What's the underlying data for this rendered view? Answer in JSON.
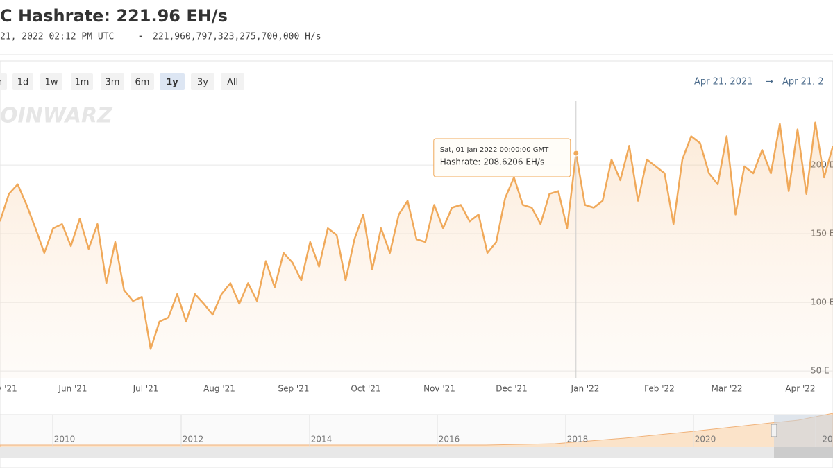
{
  "header": {
    "title": "C Hashrate: 221.96 EH/s",
    "timestamp": "21, 2022 02:12 PM UTC",
    "separator": "-",
    "raw_value": "221,960,797,323,275,700,000 H/s"
  },
  "range_buttons": [
    "n",
    "1d",
    "1w",
    "1m",
    "3m",
    "6m",
    "1y",
    "3y",
    "All"
  ],
  "selected_range": "1y",
  "date_range": {
    "from": "Apr 21, 2021",
    "arrow": "→",
    "to": "Apr 21, 2"
  },
  "watermark": "OINWARZ",
  "chart_data": {
    "type": "area",
    "xticks": [
      "y '21",
      "Jun '21",
      "Jul '21",
      "Aug '21",
      "Sep '21",
      "Oct '21",
      "Nov '21",
      "Dec '21",
      "Jan '22",
      "Feb '22",
      "Mar '22",
      "Apr '22"
    ],
    "series": [
      {
        "name": "Hashrate",
        "color": "#f0a95a",
        "values": [
          159,
          179,
          186,
          171,
          154,
          136,
          154,
          157,
          141,
          161,
          139,
          157,
          114,
          144,
          109,
          101,
          104,
          66,
          86,
          89,
          106,
          86,
          106,
          99,
          91,
          106,
          114,
          99,
          114,
          101,
          130,
          111,
          136,
          129,
          116,
          144,
          126,
          154,
          149,
          116,
          146,
          164,
          124,
          154,
          136,
          164,
          174,
          146,
          144,
          171,
          154,
          169,
          171,
          159,
          164,
          136,
          144,
          176,
          191,
          171,
          169,
          157,
          179,
          181,
          154,
          208.6206,
          171,
          169,
          174,
          204,
          189,
          214,
          174,
          204,
          199,
          194,
          157,
          204,
          221,
          216,
          194,
          186,
          221,
          164,
          199,
          194,
          211,
          194,
          230,
          181,
          226,
          179,
          231,
          191,
          214
        ]
      }
    ],
    "ylim": [
      45,
      247
    ],
    "yticks": [
      {
        "value": 200,
        "label": "200 E"
      },
      {
        "value": 150,
        "label": "150 E"
      },
      {
        "value": 100,
        "label": "100 E"
      },
      {
        "value": 50,
        "label": "50 E"
      }
    ],
    "grid": true,
    "tooltip": {
      "index": 65,
      "date": "Sat, 01 Jan 2022 00:00:00 GMT",
      "text": "Hashrate: 208.6206 EH/s"
    }
  },
  "navigator": {
    "years": [
      "2010",
      "2012",
      "2014",
      "2016",
      "2018",
      "2020",
      "20"
    ]
  }
}
